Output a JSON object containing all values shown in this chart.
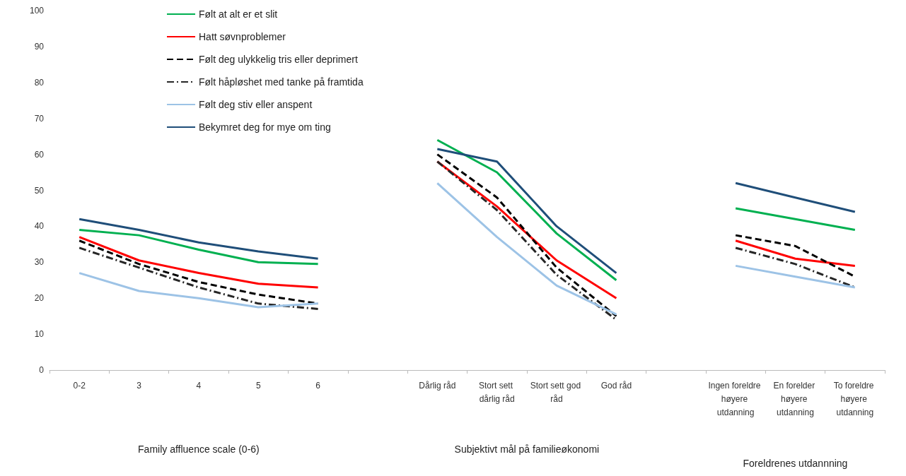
{
  "chart_data": {
    "type": "line",
    "categories": [
      "0-2",
      "3",
      "4",
      "5",
      "6",
      null,
      "Dårlig råd",
      "Stort sett dårlig råd",
      "Stort sett god råd",
      "God råd",
      null,
      "Ingen foreldre høyere utdanning",
      "En forelder høyere utdanning",
      "To foreldre høyere utdanning"
    ],
    "series": [
      {
        "name": "Følt at alt er et slit",
        "color": "#00b050",
        "line_style": "solid",
        "values": [
          39,
          37.5,
          33.5,
          30,
          29.5,
          null,
          64,
          55,
          38,
          25,
          null,
          45,
          42,
          39
        ]
      },
      {
        "name": "Hatt søvnproblemer",
        "color": "#ff0000",
        "line_style": "solid",
        "values": [
          37,
          30.5,
          27,
          24,
          23,
          null,
          58,
          45.5,
          30.5,
          20,
          null,
          36,
          31,
          29
        ]
      },
      {
        "name": "Følt deg ulykkelig tris eller deprimert",
        "color": "#000000",
        "line_style": "dashed",
        "values": [
          36,
          29.5,
          24.5,
          21,
          18.5,
          null,
          60,
          48,
          28.5,
          15,
          null,
          37.5,
          34.5,
          26
        ]
      },
      {
        "name": "Følt håpløshet med tanke på framtida",
        "color": "#262626",
        "line_style": "dotted",
        "values": [
          34,
          28.5,
          23,
          18.5,
          17,
          null,
          58,
          44.5,
          26.5,
          14,
          null,
          34,
          29.5,
          23
        ]
      },
      {
        "name": "Følt deg stiv eller anspent",
        "color": "#9dc3e6",
        "line_style": "solid",
        "values": [
          27,
          22,
          20,
          17.5,
          18.5,
          null,
          52,
          37,
          23.5,
          15.5,
          null,
          29,
          26,
          23
        ]
      },
      {
        "name": "Bekymret deg for mye om ting",
        "color": "#1f4e79",
        "line_style": "solid",
        "values": [
          42,
          39,
          35.5,
          33,
          31,
          null,
          61.5,
          58,
          40,
          27,
          null,
          52,
          48,
          44
        ]
      }
    ],
    "annotations": [
      "Family affluence scale (0-6)",
      "Subjektivt mål på familieøkonomi",
      "Foreldrenes utdannning"
    ],
    "ylim": [
      0,
      100
    ],
    "yticks": [
      0,
      10,
      20,
      30,
      40,
      50,
      60,
      70,
      80,
      90,
      100
    ],
    "grid": false,
    "legend": "top left",
    "marker": "none"
  }
}
